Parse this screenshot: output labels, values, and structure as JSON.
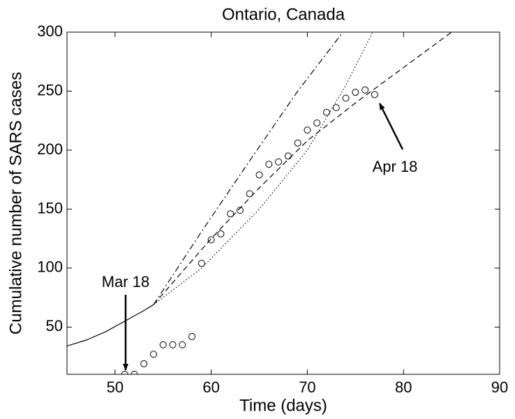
{
  "chart_data": {
    "type": "line",
    "title": "Ontario, Canada",
    "xlabel": "Time (days)",
    "ylabel": "Cumulative number of SARS cases",
    "xlim": [
      45,
      90
    ],
    "xticks": [
      50,
      60,
      70,
      80,
      90
    ],
    "ylim": [
      10,
      300
    ],
    "yticks": [
      50,
      100,
      150,
      200,
      250,
      300
    ],
    "annotations": [
      "Mar 18",
      "Apr 18"
    ],
    "series": [
      {
        "style": "points",
        "color": "#000000",
        "x": [
          51,
          52,
          53,
          54,
          55,
          56,
          57,
          58,
          59,
          60,
          61,
          62,
          63,
          64,
          65,
          66,
          67,
          68,
          69,
          70,
          71,
          72,
          73,
          74,
          75,
          76,
          77
        ],
        "values": [
          10,
          10,
          19,
          27,
          35,
          35,
          35,
          42,
          104,
          124,
          129,
          146,
          149,
          163,
          179,
          188,
          190,
          195,
          206,
          217,
          223,
          232,
          236,
          244,
          249,
          251,
          247
        ]
      },
      {
        "style": "solid",
        "color": "#000000",
        "x": [
          45,
          47,
          49,
          51,
          53,
          54
        ],
        "values": [
          34,
          39,
          46,
          55,
          64,
          69
        ]
      },
      {
        "style": "dashdot",
        "color": "#000000",
        "x": [
          54,
          59,
          64,
          69,
          73.7
        ],
        "values": [
          69,
          131,
          191,
          250,
          300
        ]
      },
      {
        "style": "dotted",
        "color": "#000000",
        "x": [
          54,
          59,
          65,
          70,
          74,
          76.8
        ],
        "values": [
          69,
          100,
          150,
          200,
          255,
          300
        ]
      },
      {
        "style": "dashed",
        "color": "#000000",
        "x": [
          54,
          60,
          65,
          70,
          75,
          80,
          85
        ],
        "values": [
          69,
          125,
          168,
          208,
          240,
          270,
          300
        ]
      }
    ]
  }
}
